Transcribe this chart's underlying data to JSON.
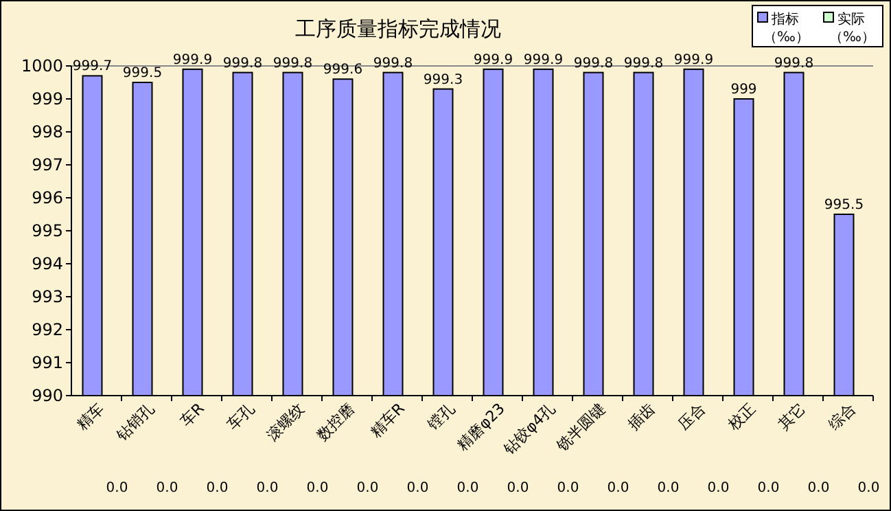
{
  "chart_data": {
    "type": "bar",
    "title": "工序质量指标完成情况",
    "categories": [
      "精车",
      "钻销孔",
      "车R",
      "车孔",
      "滚螺纹",
      "数控磨",
      "精车R",
      "镗孔",
      "精磨φ23",
      "钻铰φ4孔",
      "铣半圆键",
      "插齿",
      "压合",
      "校正",
      "其它",
      "综合"
    ],
    "series": [
      {
        "name": "指标（‰）",
        "color": "#9999ff",
        "values": [
          999.7,
          999.5,
          999.9,
          999.8,
          999.8,
          999.6,
          999.8,
          999.3,
          999.9,
          999.9,
          999.8,
          999.8,
          999.9,
          999,
          999.8,
          995.5
        ],
        "value_labels": [
          "999.7",
          "999.5",
          "999.9",
          "999.8",
          "999.8",
          "999.6",
          "999.8",
          "999.3",
          "999.9",
          "999.9",
          "999.8",
          "999.8",
          "999.9",
          "999",
          "999.8",
          "995.5"
        ]
      },
      {
        "name": "实际（‰）",
        "color": "#ccffcc",
        "values": [
          null,
          null,
          null,
          null,
          null,
          null,
          null,
          null,
          null,
          null,
          null,
          null,
          null,
          null,
          null,
          null
        ],
        "value_labels": [
          "0.0",
          "0.0",
          "0.0",
          "0.0",
          "0.0",
          "0.0",
          "0.0",
          "0.0",
          "0.0",
          "0.0",
          "0.0",
          "0.0",
          "0.0",
          "0.0",
          "0.0",
          "0.0"
        ]
      }
    ],
    "ylim": [
      990,
      1000
    ],
    "yticks": [
      990,
      991,
      992,
      993,
      994,
      995,
      996,
      997,
      998,
      999,
      1000
    ],
    "grid": false,
    "legend": "top right"
  }
}
